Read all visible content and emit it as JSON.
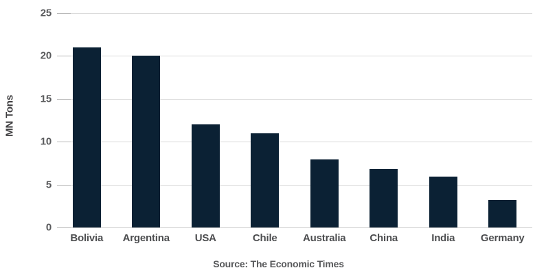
{
  "chart_data": {
    "type": "bar",
    "categories": [
      "Bolivia",
      "Argentina",
      "USA",
      "Chile",
      "Australia",
      "China",
      "India",
      "Germany"
    ],
    "values": [
      21,
      20,
      12,
      11,
      7.9,
      6.8,
      5.9,
      3.2
    ],
    "title": "",
    "xlabel": "",
    "ylabel": "MN Tons",
    "ylim": [
      0,
      25
    ],
    "yticks": [
      0,
      5,
      10,
      15,
      20,
      25
    ],
    "grid": "horizontal",
    "legend": "none",
    "bar_color": "#0b2134",
    "source": "Source: The Economic Times"
  },
  "colors": {
    "background": "#ffffff",
    "bar": "#0b2134",
    "gridline": "#d9d9d9",
    "baseline": "#cccccc",
    "tick_mark": "#b5b5b5",
    "tick_text": "#58595b",
    "category_text": "#4d4e50",
    "axis_title_text": "#414042",
    "source_text": "#58595b"
  }
}
